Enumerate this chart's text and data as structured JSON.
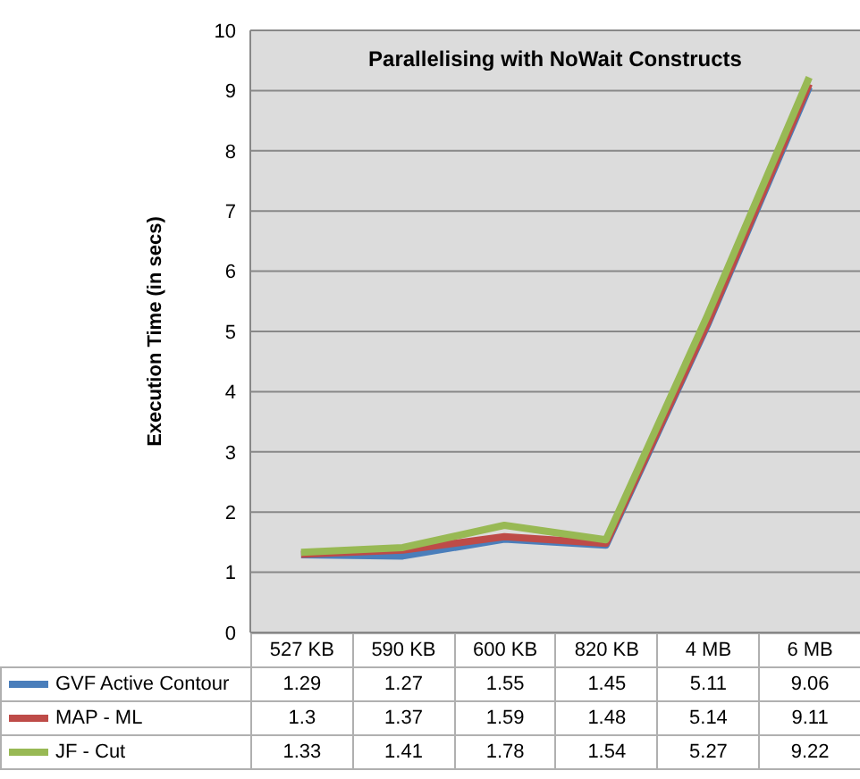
{
  "chart_data": {
    "type": "line",
    "title": "Parallelising with NoWait Constructs",
    "ylabel": "Execution Time  (in secs)",
    "categories": [
      "527 KB",
      "590 KB",
      "600 KB",
      "820 KB",
      "4 MB",
      "6 MB"
    ],
    "series": [
      {
        "name": "GVF Active Contour",
        "color": "#4a7ebb",
        "values": [
          1.29,
          1.27,
          1.55,
          1.45,
          5.11,
          9.06
        ]
      },
      {
        "name": "MAP - ML",
        "color": "#be4b48",
        "values": [
          1.3,
          1.37,
          1.59,
          1.48,
          5.14,
          9.11
        ]
      },
      {
        "name": "JF - Cut",
        "color": "#98b954",
        "values": [
          1.33,
          1.41,
          1.78,
          1.54,
          5.27,
          9.22
        ]
      }
    ],
    "ylim": [
      0,
      10
    ],
    "yticks": [
      0,
      1,
      2,
      3,
      4,
      5,
      6,
      7,
      8,
      9,
      10
    ],
    "grid": "y",
    "legend": "bottom",
    "data_labels": true,
    "marker": "none",
    "line_style": "solid"
  }
}
